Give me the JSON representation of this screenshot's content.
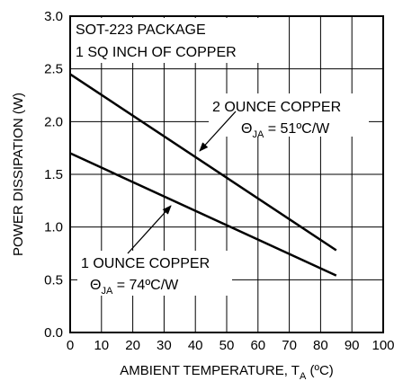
{
  "chart_data": {
    "type": "line",
    "xlabel": {
      "main": "AMBIENT TEMPERATURE, T",
      "sub": "A",
      "rest": " (ºC)"
    },
    "ylabel": "POWER DISSIPATION (W)",
    "box_lines": [
      "SOT-223 PACKAGE",
      "1 SQ INCH OF COPPER"
    ],
    "series": [
      {
        "name": "2 OUNCE COPPER",
        "theta": {
          "symbol": "Θ",
          "sub": "JA",
          "rest": " = 51ºC/W"
        },
        "color": "#000000",
        "x": [
          0,
          85
        ],
        "values": [
          2.45,
          0.78
        ]
      },
      {
        "name": "1 OUNCE COPPER",
        "theta": {
          "symbol": "Θ",
          "sub": "JA",
          "rest": " = 74ºC/W"
        },
        "color": "#000000",
        "x": [
          0,
          85
        ],
        "values": [
          1.7,
          0.54
        ]
      }
    ],
    "xlim": [
      0,
      100
    ],
    "xticks": [
      0,
      10,
      20,
      30,
      40,
      50,
      60,
      70,
      80,
      90,
      100
    ],
    "ylim": [
      0,
      3
    ],
    "yticks": [
      {
        "value": 0,
        "label": "0.0"
      },
      0.5,
      {
        "value": 1,
        "label": "1.0"
      },
      1.5,
      {
        "value": 2,
        "label": "2.0"
      },
      2.5,
      {
        "value": 3,
        "label": "3.0"
      }
    ],
    "grid": true
  }
}
